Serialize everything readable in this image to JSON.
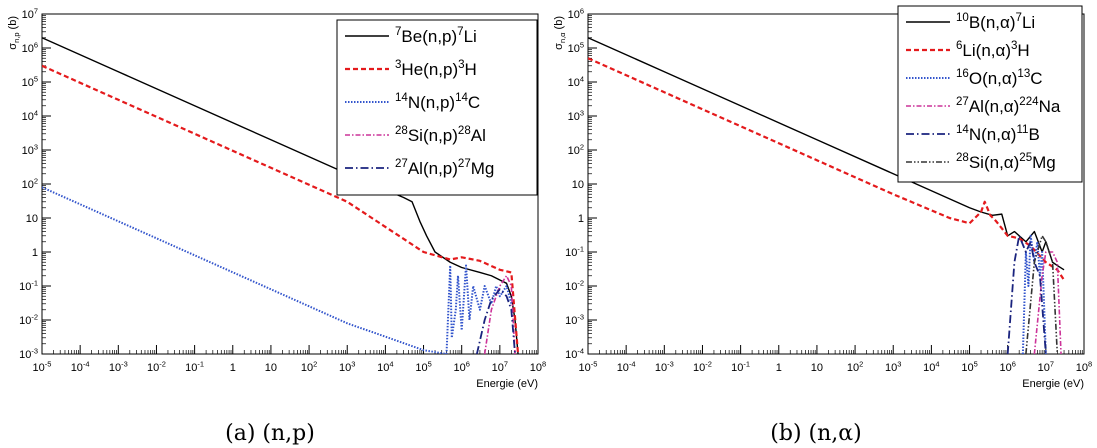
{
  "chart_data": [
    {
      "type": "line",
      "caption": "(a) (n,p)",
      "xlabel": "Energie (eV)",
      "ylabel": "σn,p (b)",
      "xscale": "log",
      "yscale": "log",
      "xlim": [
        1e-05,
        100000000.0
      ],
      "ylim": [
        0.001,
        10000000.0
      ],
      "grid": false,
      "legend_position": "top-right",
      "x_ticks": [
        "10-5",
        "10-4",
        "10-3",
        "10-2",
        "10-1",
        "1",
        "10",
        "102",
        "103",
        "104",
        "105",
        "106",
        "107",
        "108"
      ],
      "y_ticks": [
        "10-3",
        "10-2",
        "10-1",
        "1",
        "10",
        "102",
        "103",
        "104",
        "105",
        "106",
        "107"
      ],
      "series": [
        {
          "name": "7Be(n,p)7Li",
          "color": "#000000",
          "style": "solid",
          "x": [
            1e-05,
            0.001,
            0.1,
            10,
            1000,
            30000,
            50000,
            80000,
            120000,
            200000,
            500000,
            1000000,
            3000000,
            6000000,
            10000000,
            15000000,
            20000000,
            25000000,
            30000000
          ],
          "y": [
            2000000,
            200000,
            20000,
            2000,
            200,
            40,
            30,
            8,
            3,
            1,
            0.5,
            0.35,
            0.25,
            0.2,
            0.15,
            0.12,
            0.05,
            0.01,
            0.001
          ]
        },
        {
          "name": "3He(n,p)3H",
          "color": "#e41a1c",
          "style": "dashed",
          "x": [
            1e-05,
            0.001,
            0.1,
            10,
            1000,
            100000,
            500000,
            1000000,
            3000000,
            10000000,
            20000000,
            30000000
          ],
          "y": [
            300000,
            30000,
            3000,
            300,
            30,
            1,
            0.6,
            0.7,
            0.55,
            0.3,
            0.25,
            0.001
          ]
        },
        {
          "name": "14N(n,p)14C",
          "color": "#3355cc",
          "style": "dotted",
          "x": [
            1e-05,
            0.001,
            0.1,
            10,
            1000,
            100000,
            400000,
            500000,
            550000,
            700000,
            800000,
            1000000,
            1300000,
            1600000,
            2000000,
            3000000,
            4000000,
            6000000,
            8000000,
            10000000,
            15000000,
            20000000
          ],
          "y": [
            80,
            8,
            0.8,
            0.08,
            0.008,
            0.0013,
            0.001,
            0.4,
            0.003,
            0.02,
            0.2,
            0.005,
            0.4,
            0.01,
            0.1,
            0.02,
            0.1,
            0.03,
            0.1,
            0.05,
            0.1,
            0.03
          ]
        },
        {
          "name": "28Si(n,p)28Al",
          "color": "#cc3399",
          "style": "dashdot",
          "x": [
            4000000,
            6000000,
            8000000,
            10000000,
            15000000,
            20000000,
            25000000
          ],
          "y": [
            0.001,
            0.02,
            0.05,
            0.1,
            0.2,
            0.1,
            0.001
          ]
        },
        {
          "name": "27Al(n,p)27Mg",
          "color": "#1a237e",
          "style": "dashdotlong",
          "x": [
            2500000,
            4000000,
            6000000,
            10000000,
            15000000,
            20000000,
            25000000
          ],
          "y": [
            0.001,
            0.01,
            0.04,
            0.08,
            0.05,
            0.02,
            0.001
          ]
        }
      ]
    },
    {
      "type": "line",
      "caption": "(b) (n,α)",
      "xlabel": "Energie (eV)",
      "ylabel": "σn,α (b)",
      "xscale": "log",
      "yscale": "log",
      "xlim": [
        1e-05,
        100000000.0
      ],
      "ylim": [
        0.0001,
        1000000.0
      ],
      "grid": false,
      "legend_position": "top-right",
      "x_ticks": [
        "10-5",
        "10-4",
        "10-3",
        "10-2",
        "10-1",
        "1",
        "10",
        "102",
        "103",
        "104",
        "105",
        "106",
        "107",
        "108"
      ],
      "y_ticks": [
        "10-4",
        "10-3",
        "10-2",
        "10-1",
        "1",
        "10",
        "102",
        "103",
        "104",
        "105",
        "106"
      ],
      "series": [
        {
          "name": "10B(n,α)7Li",
          "color": "#000000",
          "style": "solid",
          "x": [
            1e-05,
            0.001,
            0.1,
            10,
            1000,
            100000,
            200000,
            400000,
            700000,
            1000000,
            1500000,
            2000000,
            3000000,
            5000000,
            8000000,
            10000000,
            15000000,
            20000000,
            30000000
          ],
          "y": [
            200000,
            20000,
            2000,
            200,
            20,
            2,
            1.5,
            1.2,
            1.3,
            0.3,
            0.4,
            0.3,
            0.2,
            0.4,
            0.1,
            0.2,
            0.05,
            0.04,
            0.03
          ]
        },
        {
          "name": "6Li(n,α)3H",
          "color": "#e41a1c",
          "style": "dashed",
          "x": [
            1e-05,
            0.001,
            0.1,
            10,
            1000,
            30000,
            100000,
            200000,
            250000,
            350000,
            500000,
            1000000,
            2000000,
            4000000,
            10000000,
            20000000,
            30000000
          ],
          "y": [
            50000,
            5000,
            500,
            50,
            5,
            1,
            0.7,
            1.5,
            3,
            1.2,
            0.8,
            0.3,
            0.25,
            0.15,
            0.05,
            0.03,
            0.015
          ]
        },
        {
          "name": "16O(n,α)13C",
          "color": "#3355cc",
          "style": "dotted",
          "x": [
            2500000,
            3000000,
            3500000,
            4000000,
            5000000,
            6000000,
            7000000,
            8000000,
            10000000
          ],
          "y": [
            0.0001,
            0.1,
            0.01,
            0.3,
            0.05,
            0.2,
            0.02,
            0.1,
            0.0001
          ]
        },
        {
          "name": "27Al(n,α)224Na",
          "color": "#cc3399",
          "style": "dashdot",
          "x": [
            5000000,
            8000000,
            10000000,
            15000000,
            20000000,
            25000000
          ],
          "y": [
            0.0001,
            0.02,
            0.1,
            0.1,
            0.05,
            0.0001
          ]
        },
        {
          "name": "14N(n,α)11B",
          "color": "#1a237e",
          "style": "dashdotlong",
          "x": [
            1000000,
            1500000,
            2000000,
            3000000,
            4000000,
            5000000,
            7000000,
            10000000
          ],
          "y": [
            0.0001,
            0.05,
            0.3,
            0.1,
            0.2,
            0.05,
            0.02,
            0.0001
          ]
        },
        {
          "name": "28Si(n,α)25Mg",
          "color": "#333333",
          "style": "dashdotdot",
          "x": [
            3000000,
            5000000,
            8000000,
            10000000,
            15000000,
            20000000
          ],
          "y": [
            0.0001,
            0.05,
            0.3,
            0.2,
            0.05,
            0.0001
          ]
        }
      ]
    }
  ]
}
